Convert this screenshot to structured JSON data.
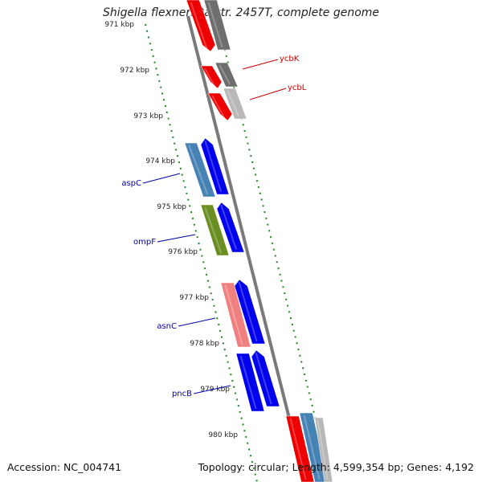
{
  "title": "Shigella flexneri 2a str. 2457T, complete genome",
  "accession": "Accession: NC_004741",
  "summary": "Topology: circular; Length: 4,599,354 bp; Genes: 4,192",
  "kbp_labels": [
    "971 kbp",
    "972 kbp",
    "973 kbp",
    "974 kbp",
    "975 kbp",
    "976 kbp",
    "977 kbp",
    "978 kbp",
    "979 kbp",
    "980 kbp"
  ],
  "gene_labels": [
    {
      "name": "ycbK",
      "color": "#cc0000"
    },
    {
      "name": "ycbL",
      "color": "#cc0000"
    },
    {
      "name": "aspC",
      "color": "#0000aa"
    },
    {
      "name": "ompF",
      "color": "#0000aa"
    },
    {
      "name": "asnC",
      "color": "#0000aa"
    },
    {
      "name": "pncB",
      "color": "#0000aa"
    }
  ],
  "colors": {
    "red": "#ee0000",
    "dark_gray": "#6e6e6e",
    "light_gray": "#b8b8b8",
    "steel_blue": "#4682b4",
    "blue": "#0000ee",
    "olive": "#6b8e23",
    "pink": "#f08080",
    "backbone": "#808080",
    "dotted": "#1a8a1a"
  }
}
